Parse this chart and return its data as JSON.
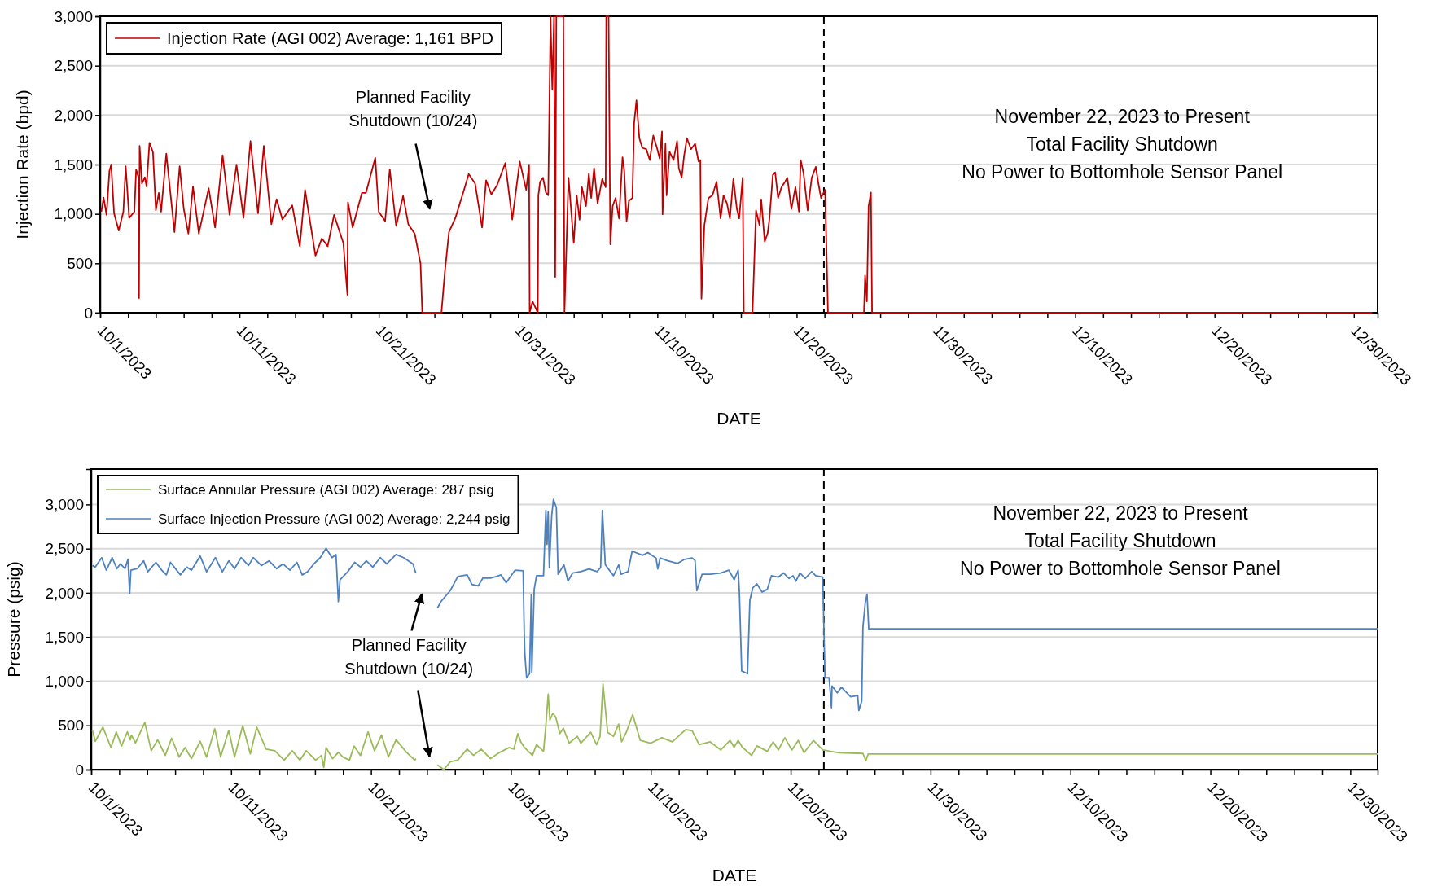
{
  "chart_data": [
    {
      "type": "line",
      "xlabel": "DATE",
      "ylabel": "Injection Rate (bpd)",
      "xlim": [
        "2023-10-01",
        "2023-12-31T17:00"
      ],
      "ylim": [
        0,
        3000
      ],
      "yticks": [
        {
          "value": 0,
          "label": "0"
        },
        {
          "value": 500,
          "label": "500"
        },
        {
          "value": 1000,
          "label": "1,000"
        },
        {
          "value": 1500,
          "label": "1,500"
        },
        {
          "value": 2000,
          "label": "2,000"
        },
        {
          "value": 2500,
          "label": "2,500"
        },
        {
          "value": 3000,
          "label": "3,000"
        }
      ],
      "xticks": [
        {
          "value": "2023-10-01",
          "label": "10/1/2023"
        },
        {
          "value": "2023-10-03",
          "label": null
        },
        {
          "value": "2023-10-05",
          "label": null
        },
        {
          "value": "2023-10-07",
          "label": null
        },
        {
          "value": "2023-10-09",
          "label": null
        },
        {
          "value": "2023-10-11",
          "label": "10/11/2023"
        },
        {
          "value": "2023-10-13",
          "label": null
        },
        {
          "value": "2023-10-15",
          "label": null
        },
        {
          "value": "2023-10-17",
          "label": null
        },
        {
          "value": "2023-10-19",
          "label": null
        },
        {
          "value": "2023-10-21",
          "label": "10/21/2023"
        },
        {
          "value": "2023-10-23",
          "label": null
        },
        {
          "value": "2023-10-25",
          "label": null
        },
        {
          "value": "2023-10-27",
          "label": null
        },
        {
          "value": "2023-10-29",
          "label": null
        },
        {
          "value": "2023-10-31",
          "label": "10/31/2023"
        },
        {
          "value": "2023-11-02",
          "label": null
        },
        {
          "value": "2023-11-04",
          "label": null
        },
        {
          "value": "2023-11-06",
          "label": null
        },
        {
          "value": "2023-11-08",
          "label": null
        },
        {
          "value": "2023-11-10",
          "label": "11/10/2023"
        },
        {
          "value": "2023-11-12",
          "label": null
        },
        {
          "value": "2023-11-14",
          "label": null
        },
        {
          "value": "2023-11-16",
          "label": null
        },
        {
          "value": "2023-11-18",
          "label": null
        },
        {
          "value": "2023-11-20",
          "label": "11/20/2023"
        },
        {
          "value": "2023-11-22",
          "label": null
        },
        {
          "value": "2023-11-24",
          "label": null
        },
        {
          "value": "2023-11-26",
          "label": null
        },
        {
          "value": "2023-11-28",
          "label": null
        },
        {
          "value": "2023-11-30",
          "label": "11/30/2023"
        },
        {
          "value": "2023-12-02",
          "label": null
        },
        {
          "value": "2023-12-04",
          "label": null
        },
        {
          "value": "2023-12-06",
          "label": null
        },
        {
          "value": "2023-12-08",
          "label": null
        },
        {
          "value": "2023-12-10",
          "label": "12/10/2023"
        },
        {
          "value": "2023-12-12",
          "label": null
        },
        {
          "value": "2023-12-14",
          "label": null
        },
        {
          "value": "2023-12-16",
          "label": null
        },
        {
          "value": "2023-12-18",
          "label": null
        },
        {
          "value": "2023-12-20",
          "label": "12/20/2023"
        },
        {
          "value": "2023-12-22",
          "label": null
        },
        {
          "value": "2023-12-24",
          "label": null
        },
        {
          "value": "2023-12-26",
          "label": null
        },
        {
          "value": "2023-12-28",
          "label": null
        },
        {
          "value": "2023-12-30",
          "label": "12/30/2023"
        }
      ],
      "grid": "y",
      "legend": "top left",
      "ref_lines": [
        {
          "axis": "x",
          "value": "2023-11-21T23:00",
          "line_style": "dashed",
          "color": "#000000"
        }
      ],
      "annotations": [
        "Planned Facility\nShutdown (10/24)",
        "November 22, 2023 to Present\nTotal Facility Shutdown\nNo Power to Bottomhole Sensor Panel"
      ],
      "series": [
        {
          "name": "Injection Rate (AGI 002) Average: 1,161 BPD",
          "color": "#c00000",
          "x": [
            "2023-10-01T02:00",
            "2023-10-01T06:00",
            "2023-10-01T11:00",
            "2023-10-01T16:00",
            "2023-10-01T19:00",
            "2023-10-02T00:00",
            "2023-10-02T08:00",
            "2023-10-02T16:00",
            "2023-10-02T20:00",
            "2023-10-03T02:00",
            "2023-10-03T11:00",
            "2023-10-03T14:00",
            "2023-10-03T18:00",
            "2023-10-03T19:00",
            "2023-10-03T20:00",
            "2023-10-04T00:00",
            "2023-10-04T05:00",
            "2023-10-04T08:00",
            "2023-10-04T13:00",
            "2023-10-04T19:00",
            "2023-10-05T00:00",
            "2023-10-05T05:00",
            "2023-10-05T09:00",
            "2023-10-05T18:00",
            "2023-10-06T08:00",
            "2023-10-06T17:00",
            "2023-10-07T00:00",
            "2023-10-07T08:00",
            "2023-10-07T16:00",
            "2023-10-08T02:00",
            "2023-10-08T19:00",
            "2023-10-09T06:00",
            "2023-10-09T19:00",
            "2023-10-10T07:00",
            "2023-10-10T19:00",
            "2023-10-11T07:00",
            "2023-10-11T19:00",
            "2023-10-12T08:00",
            "2023-10-12T18:00",
            "2023-10-13T07:00",
            "2023-10-13T16:00",
            "2023-10-14T02:00",
            "2023-10-14T19:00",
            "2023-10-15T08:00",
            "2023-10-15T17:00",
            "2023-10-16T11:00",
            "2023-10-16T22:00",
            "2023-10-17T08:00",
            "2023-10-17T19:00",
            "2023-10-18T11:00",
            "2023-10-18T18:00",
            "2023-10-18T19:00",
            "2023-10-19T03:00",
            "2023-10-19T19:00",
            "2023-10-20T02:00",
            "2023-10-20T18:00",
            "2023-10-21T00:00",
            "2023-10-21T11:00",
            "2023-10-21T19:00",
            "2023-10-22T06:00",
            "2023-10-22T18:00",
            "2023-10-23T03:00",
            "2023-10-23T14:00",
            "2023-10-24T00:00",
            "2023-10-24T03:00",
            "2023-10-25T12:00",
            "2023-10-25T18:00",
            "2023-10-26T01:00",
            "2023-10-26T12:00",
            "2023-10-26T17:00",
            "2023-10-27T03:00",
            "2023-10-27T11:00",
            "2023-10-27T22:00",
            "2023-10-28T10:00",
            "2023-10-28T17:00",
            "2023-10-29T02:00",
            "2023-10-29T12:00",
            "2023-10-30T02:00",
            "2023-10-30T14:00",
            "2023-10-31T03:00",
            "2023-10-31T14:00",
            "2023-10-31T19:00",
            "2023-10-31T20:00",
            "2023-11-01T01:00",
            "2023-11-01T10:00",
            "2023-11-01T11:00",
            "2023-11-01T14:00",
            "2023-11-01T19:00",
            "2023-11-02T00:00",
            "2023-11-02T04:00",
            "2023-11-02T08:00",
            "2023-11-02T11:00",
            "2023-11-02T14:00",
            "2023-11-02T16:00",
            "2023-11-02T18:00",
            "2023-11-03T06:00",
            "2023-11-03T08:00",
            "2023-11-03T13:00",
            "2023-11-03T15:00",
            "2023-11-03T20:00",
            "2023-11-04T00:00",
            "2023-11-04T05:00",
            "2023-11-04T10:00",
            "2023-11-04T14:00",
            "2023-11-04T21:00",
            "2023-11-05T02:00",
            "2023-11-05T06:00",
            "2023-11-05T11:00",
            "2023-11-05T17:00",
            "2023-11-06T01:00",
            "2023-11-06T07:00",
            "2023-11-06T08:00",
            "2023-11-06T12:00",
            "2023-11-06T15:00",
            "2023-11-06T19:00",
            "2023-11-07T00:00",
            "2023-11-07T06:00",
            "2023-11-07T12:00",
            "2023-11-07T15:00",
            "2023-11-07T19:00",
            "2023-11-07T23:00",
            "2023-11-08T05:00",
            "2023-11-08T08:00",
            "2023-11-08T12:00",
            "2023-11-08T17:00",
            "2023-11-08T22:00",
            "2023-11-09T05:00",
            "2023-11-09T11:00",
            "2023-11-09T17:00",
            "2023-11-10T00:00",
            "2023-11-10T04:00",
            "2023-11-10T08:00",
            "2023-11-10T09:00",
            "2023-11-10T14:00",
            "2023-11-10T16:00",
            "2023-11-10T21:00",
            "2023-11-11T04:00",
            "2023-11-11T10:00",
            "2023-11-11T13:00",
            "2023-11-11T18:00",
            "2023-11-11T22:00",
            "2023-11-12T03:00",
            "2023-11-12T10:00",
            "2023-11-12T17:00",
            "2023-11-12T23:00",
            "2023-11-13T02:00",
            "2023-11-13T04:00",
            "2023-11-13T09:00",
            "2023-11-13T16:00",
            "2023-11-13T23:00",
            "2023-11-14T06:00",
            "2023-11-14T13:00",
            "2023-11-14T18:00",
            "2023-11-15T00:00",
            "2023-11-15T05:00",
            "2023-11-15T11:00",
            "2023-11-15T17:00",
            "2023-11-15T21:00",
            "2023-11-16T03:00",
            "2023-11-16T05:00",
            "2023-11-16T20:00",
            "2023-11-17T02:00",
            "2023-11-17T08:00",
            "2023-11-17T11:00",
            "2023-11-17T17:00",
            "2023-11-17T22:00",
            "2023-11-18T01:00",
            "2023-11-18T07:00",
            "2023-11-18T11:00",
            "2023-11-18T16:00",
            "2023-11-18T22:00",
            "2023-11-19T04:00",
            "2023-11-19T08:00",
            "2023-11-19T15:00",
            "2023-11-19T22:00",
            "2023-11-20T04:00",
            "2023-11-20T07:00",
            "2023-11-20T12:00",
            "2023-11-20T19:00",
            "2023-11-21T02:00",
            "2023-11-21T09:00",
            "2023-11-21T13:00",
            "2023-11-21T18:00",
            "2023-11-22T01:00",
            "2023-11-22T06:00",
            "2023-11-24T20:00",
            "2023-11-24T22:00",
            "2023-11-25T01:00",
            "2023-11-25T04:00",
            "2023-11-25T08:00",
            "2023-11-25T10:00",
            "2023-12-31T08:00"
          ],
          "values": [
            1022,
            1165,
            990,
            1435,
            1500,
            1006,
            832,
            1022,
            1483,
            959,
            1022,
            1450,
            1371,
            149,
            1689,
            1308,
            1371,
            1276,
            1720,
            1625,
            1038,
            1213,
            1022,
            1610,
            816,
            1483,
            1054,
            800,
            1276,
            800,
            1260,
            863,
            1594,
            990,
            1498,
            959,
            1737,
            1006,
            1689,
            895,
            1149,
            943,
            1086,
            673,
            1244,
            578,
            752,
            673,
            990,
            705,
            181,
            1117,
            863,
            1213,
            1213,
            1568,
            1022,
            927,
            1451,
            879,
            1181,
            895,
            800,
            498,
            0,
            0,
            419,
            816,
            959,
            1054,
            1244,
            1403,
            1308,
            863,
            1340,
            1197,
            1292,
            1514,
            943,
            1530,
            1244,
            1498,
            0,
            115,
            0,
            1188,
            1325,
            1366,
            1216,
            1188,
            3000,
            2260,
            3000,
            362,
            3000,
            3000,
            0,
            995,
            1366,
            995,
            706,
            1188,
            940,
            1271,
            1079,
            1408,
            1161,
            1463,
            1106,
            1353,
            1271,
            3000,
            3000,
            692,
            1079,
            1161,
            954,
            1573,
            1436,
            926,
            1133,
            1161,
            1917,
            2150,
            1766,
            1669,
            1655,
            1545,
            1793,
            1655,
            1559,
            1834,
            995,
            1710,
            1188,
            1628,
            1545,
            1738,
            1463,
            1366,
            1586,
            1766,
            1655,
            1710,
            1531,
            1545,
            142,
            885,
            1161,
            1188,
            1325,
            954,
            1188,
            1106,
            954,
            1353,
            1050,
            954,
            1366,
            0,
            0,
            1036,
            885,
            1147,
            720,
            803,
            940,
            1394,
            1421,
            1161,
            1271,
            1325,
            1366,
            1050,
            1271,
            1023,
            1545,
            1408,
            1036,
            1366,
            1476,
            1325,
            1161,
            1243,
            0,
            0,
            376,
            115,
            1079,
            1216,
            0,
            0
          ]
        }
      ]
    },
    {
      "type": "line",
      "xlabel": "DATE",
      "ylabel": "Pressure (psig)",
      "xlim": [
        "2023-10-01",
        "2023-12-31T23:00"
      ],
      "ylim": [
        0,
        3400
      ],
      "yticks": [
        {
          "value": 0,
          "label": "0"
        },
        {
          "value": 500,
          "label": "500"
        },
        {
          "value": 1000,
          "label": "1,000"
        },
        {
          "value": 1500,
          "label": "1,500"
        },
        {
          "value": 2000,
          "label": "2,000"
        },
        {
          "value": 2500,
          "label": "2,500"
        },
        {
          "value": 3000,
          "label": "3,000"
        }
      ],
      "xticks": [
        {
          "value": "2023-10-01",
          "label": "10/1/2023"
        },
        {
          "value": "2023-10-03",
          "label": null
        },
        {
          "value": "2023-10-05",
          "label": null
        },
        {
          "value": "2023-10-07",
          "label": null
        },
        {
          "value": "2023-10-09",
          "label": null
        },
        {
          "value": "2023-10-11",
          "label": "10/11/2023"
        },
        {
          "value": "2023-10-13",
          "label": null
        },
        {
          "value": "2023-10-15",
          "label": null
        },
        {
          "value": "2023-10-17",
          "label": null
        },
        {
          "value": "2023-10-19",
          "label": null
        },
        {
          "value": "2023-10-21",
          "label": "10/21/2023"
        },
        {
          "value": "2023-10-23",
          "label": null
        },
        {
          "value": "2023-10-25",
          "label": null
        },
        {
          "value": "2023-10-27",
          "label": null
        },
        {
          "value": "2023-10-29",
          "label": null
        },
        {
          "value": "2023-10-31",
          "label": "10/31/2023"
        },
        {
          "value": "2023-11-02",
          "label": null
        },
        {
          "value": "2023-11-04",
          "label": null
        },
        {
          "value": "2023-11-06",
          "label": null
        },
        {
          "value": "2023-11-08",
          "label": null
        },
        {
          "value": "2023-11-10",
          "label": "11/10/2023"
        },
        {
          "value": "2023-11-12",
          "label": null
        },
        {
          "value": "2023-11-14",
          "label": null
        },
        {
          "value": "2023-11-16",
          "label": null
        },
        {
          "value": "2023-11-18",
          "label": null
        },
        {
          "value": "2023-11-20",
          "label": "11/20/2023"
        },
        {
          "value": "2023-11-22",
          "label": null
        },
        {
          "value": "2023-11-24",
          "label": null
        },
        {
          "value": "2023-11-26",
          "label": null
        },
        {
          "value": "2023-11-28",
          "label": null
        },
        {
          "value": "2023-11-30",
          "label": "11/30/2023"
        },
        {
          "value": "2023-12-02",
          "label": null
        },
        {
          "value": "2023-12-04",
          "label": null
        },
        {
          "value": "2023-12-06",
          "label": null
        },
        {
          "value": "2023-12-08",
          "label": null
        },
        {
          "value": "2023-12-10",
          "label": "12/10/2023"
        },
        {
          "value": "2023-12-12",
          "label": null
        },
        {
          "value": "2023-12-14",
          "label": null
        },
        {
          "value": "2023-12-16",
          "label": null
        },
        {
          "value": "2023-12-18",
          "label": null
        },
        {
          "value": "2023-12-20",
          "label": "12/20/2023"
        },
        {
          "value": "2023-12-22",
          "label": null
        },
        {
          "value": "2023-12-24",
          "label": null
        },
        {
          "value": "2023-12-26",
          "label": null
        },
        {
          "value": "2023-12-28",
          "label": null
        },
        {
          "value": "2023-12-30",
          "label": "12/30/2023"
        }
      ],
      "grid": "y",
      "legend": "top left",
      "ref_lines": [
        {
          "axis": "x",
          "value": "2023-11-22T09:00",
          "line_style": "dashed",
          "color": "#000000"
        }
      ],
      "annotations": [
        "Planned Facility\nShutdown (10/24)",
        "November 22, 2023 to Present\nTotal Facility Shutdown\nNo Power to Bottomhole Sensor Panel"
      ],
      "series": [
        {
          "name": "Surface Annular Pressure (AGI 002) Average: 287 psig",
          "color": "#9bbb59",
          "x": [
            "2023-10-01T02:00",
            "2023-10-01T07:00",
            "2023-10-01T20:00",
            "2023-10-02T10:00",
            "2023-10-02T19:00",
            "2023-10-03T04:00",
            "2023-10-03T14:00",
            "2023-10-03T19:00",
            "2023-10-03T21:00",
            "2023-10-04T04:00",
            "2023-10-04T20:00",
            "2023-10-05T07:00",
            "2023-10-05T18:00",
            "2023-10-06T07:00",
            "2023-10-06T18:00",
            "2023-10-07T07:00",
            "2023-10-07T17:00",
            "2023-10-08T04:00",
            "2023-10-08T19:00",
            "2023-10-09T06:00",
            "2023-10-09T20:00",
            "2023-10-10T06:00",
            "2023-10-10T20:00",
            "2023-10-11T06:00",
            "2023-10-11T20:00",
            "2023-10-12T09:00",
            "2023-10-12T20:00",
            "2023-10-13T12:00",
            "2023-10-14T03:00",
            "2023-10-14T19:00",
            "2023-10-15T09:00",
            "2023-10-15T22:00",
            "2023-10-16T09:00",
            "2023-10-17T01:00",
            "2023-10-17T11:00",
            "2023-10-17T15:00",
            "2023-10-17T19:00",
            "2023-10-18T06:00",
            "2023-10-18T16:00",
            "2023-10-19T00:00",
            "2023-10-19T11:00",
            "2023-10-19T19:00",
            "2023-10-20T06:00",
            "2023-10-20T19:00",
            "2023-10-21T06:00",
            "2023-10-21T18:00",
            "2023-10-22T06:00",
            "2023-10-22T19:00",
            "2023-10-23T13:00",
            "2023-10-24T03:00",
            "2023-10-24T05:00",
            "2023-10-24T12:00",
            "2023-10-25T18:00",
            "2023-10-26T05:00",
            "2023-10-26T16:00",
            "2023-10-27T05:00",
            "2023-10-27T21:00",
            "2023-10-28T08:00",
            "2023-10-28T21:00",
            "2023-10-29T13:00",
            "2023-10-30T05:00",
            "2023-10-30T21:00",
            "2023-10-31T05:00",
            "2023-10-31T12:00",
            "2023-10-31T17:00",
            "2023-10-31T23:00",
            "2023-11-01T13:00",
            "2023-11-01T20:00",
            "2023-11-02T08:00",
            "2023-11-02T12:00",
            "2023-11-02T16:00",
            "2023-11-02T19:00",
            "2023-11-03T00:00",
            "2023-11-03T05:00",
            "2023-11-03T12:00",
            "2023-11-03T18:00",
            "2023-11-04T04:00",
            "2023-11-04T18:00",
            "2023-11-05T00:00",
            "2023-11-05T17:00",
            "2023-11-06T03:00",
            "2023-11-06T09:00",
            "2023-11-06T14:00",
            "2023-11-06T22:00",
            "2023-11-07T08:00",
            "2023-11-07T17:00",
            "2023-11-07T22:00",
            "2023-11-08T06:00",
            "2023-11-08T17:00",
            "2023-11-09T06:00",
            "2023-11-10T00:00",
            "2023-11-10T19:00",
            "2023-11-11T13:00",
            "2023-11-12T12:00",
            "2023-11-12T23:00",
            "2023-11-13T11:00",
            "2023-11-14T06:00",
            "2023-11-15T00:00",
            "2023-11-15T16:00",
            "2023-11-15T23:00",
            "2023-11-16T06:00",
            "2023-11-16T13:00",
            "2023-11-17T05:00",
            "2023-11-17T14:00",
            "2023-11-18T08:00",
            "2023-11-18T18:00",
            "2023-11-19T03:00",
            "2023-11-19T14:00",
            "2023-11-20T02:00",
            "2023-11-20T13:00",
            "2023-11-20T23:00",
            "2023-11-21T15:00",
            "2023-11-22T07:00",
            "2023-11-23T11:00",
            "2023-11-25T04:00",
            "2023-11-25T09:00",
            "2023-11-25T13:00",
            "2023-12-31T23:00"
          ],
          "values": [
            444,
            320,
            480,
            249,
            426,
            266,
            426,
            337,
            391,
            302,
            533,
            213,
            337,
            160,
            355,
            142,
            249,
            124,
            320,
            142,
            462,
            142,
            444,
            142,
            497,
            178,
            480,
            231,
            213,
            107,
            213,
            107,
            213,
            107,
            160,
            25,
            249,
            124,
            195,
            142,
            107,
            266,
            160,
            426,
            213,
            391,
            142,
            337,
            195,
            107,
            124,
            null,
            53,
            0,
            89,
            107,
            231,
            160,
            231,
            124,
            195,
            249,
            231,
            407,
            314,
            253,
            160,
            283,
            206,
            499,
            854,
            561,
            638,
            592,
            407,
            468,
            299,
            376,
            299,
            422,
            283,
            376,
            968,
            422,
            376,
            515,
            314,
            422,
            622,
            330,
            299,
            361,
            314,
            453,
            438,
            283,
            314,
            222,
            330,
            253,
            330,
            253,
            160,
            268,
            206,
            314,
            222,
            361,
            222,
            330,
            191,
            330,
            222,
            191,
            182,
            99,
            176,
            176
          ]
        },
        {
          "name": "Surface Injection Pressure (AGI 002) Average: 2,244 psig",
          "color": "#4f81bd",
          "x": [
            "2023-10-01T02:00",
            "2023-10-01T07:00",
            "2023-10-01T18:00",
            "2023-10-02T02:00",
            "2023-10-02T12:00",
            "2023-10-02T20:00",
            "2023-10-03T02:00",
            "2023-10-03T10:00",
            "2023-10-03T15:00",
            "2023-10-03T18:00",
            "2023-10-03T20:00",
            "2023-10-04T07:00",
            "2023-10-04T18:00",
            "2023-10-05T01:00",
            "2023-10-05T15:00",
            "2023-10-06T01:00",
            "2023-10-06T09:00",
            "2023-10-06T16:00",
            "2023-10-07T09:00",
            "2023-10-07T20:00",
            "2023-10-08T04:00",
            "2023-10-08T19:00",
            "2023-10-09T06:00",
            "2023-10-09T21:00",
            "2023-10-10T09:00",
            "2023-10-10T20:00",
            "2023-10-11T06:00",
            "2023-10-11T17:00",
            "2023-10-12T06:00",
            "2023-10-12T14:00",
            "2023-10-13T04:00",
            "2023-10-13T17:00",
            "2023-10-14T06:00",
            "2023-10-14T17:00",
            "2023-10-15T05:00",
            "2023-10-15T17:00",
            "2023-10-16T02:00",
            "2023-10-16T11:00",
            "2023-10-16T22:00",
            "2023-10-17T09:00",
            "2023-10-17T19:00",
            "2023-10-18T05:00",
            "2023-10-18T12:00",
            "2023-10-18T16:00",
            "2023-10-18T19:00",
            "2023-10-19T08:00",
            "2023-10-19T20:00",
            "2023-10-20T06:00",
            "2023-10-20T16:00",
            "2023-10-21T03:00",
            "2023-10-21T16:00",
            "2023-10-22T03:00",
            "2023-10-22T19:00",
            "2023-10-23T08:00",
            "2023-10-24T00:00",
            "2023-10-24T05:00",
            "2023-10-24T12:00",
            "2023-10-25T18:00",
            "2023-10-26T00:00",
            "2023-10-26T16:00",
            "2023-10-27T05:00",
            "2023-10-27T21:00",
            "2023-10-28T05:00",
            "2023-10-28T16:00",
            "2023-10-29T00:00",
            "2023-10-29T13:00",
            "2023-10-29T23:00",
            "2023-10-30T07:00",
            "2023-10-30T16:00",
            "2023-10-31T07:00",
            "2023-10-31T21:00",
            "2023-10-31T23:00",
            "2023-11-01T00:00",
            "2023-11-01T03:00",
            "2023-11-01T08:00",
            "2023-11-01T11:00",
            "2023-11-01T12:00",
            "2023-11-01T16:00",
            "2023-11-01T20:00",
            "2023-11-02T08:00",
            "2023-11-02T12:00",
            "2023-11-02T14:00",
            "2023-11-02T16:00",
            "2023-11-02T18:00",
            "2023-11-02T22:00",
            "2023-11-03T01:00",
            "2023-11-03T06:00",
            "2023-11-03T09:00",
            "2023-11-03T19:00",
            "2023-11-04T02:00",
            "2023-11-04T10:00",
            "2023-11-05T00:00",
            "2023-11-05T14:00",
            "2023-11-06T04:00",
            "2023-11-06T10:00",
            "2023-11-06T13:00",
            "2023-11-06T18:00",
            "2023-11-07T08:00",
            "2023-11-07T17:00",
            "2023-11-07T21:00",
            "2023-11-08T09:00",
            "2023-11-08T16:00",
            "2023-11-09T10:00",
            "2023-11-09T19:00",
            "2023-11-10T09:00",
            "2023-11-10T12:00",
            "2023-11-10T16:00",
            "2023-11-11T04:00",
            "2023-11-11T22:00",
            "2023-11-12T10:00",
            "2023-11-12T23:00",
            "2023-11-13T04:00",
            "2023-11-13T07:00",
            "2023-11-13T16:00",
            "2023-11-14T06:00",
            "2023-11-15T00:00",
            "2023-11-15T14:00",
            "2023-11-15T23:00",
            "2023-11-16T06:00",
            "2023-11-16T08:00",
            "2023-11-16T12:00",
            "2023-11-16T22:00",
            "2023-11-17T02:00",
            "2023-11-17T07:00",
            "2023-11-17T14:00",
            "2023-11-17T23:00",
            "2023-11-18T08:00",
            "2023-11-18T15:00",
            "2023-11-19T03:00",
            "2023-11-19T12:00",
            "2023-11-19T21:00",
            "2023-11-20T04:00",
            "2023-11-20T09:00",
            "2023-11-20T16:00",
            "2023-11-21T01:00",
            "2023-11-21T12:00",
            "2023-11-21T19:00",
            "2023-11-22T07:00",
            "2023-11-22T11:00",
            "2023-11-22T18:00",
            "2023-11-22T22:00",
            "2023-11-22T23:00",
            "2023-11-23T08:00",
            "2023-11-23T15:00",
            "2023-11-24T07:00",
            "2023-11-24T19:00",
            "2023-11-24T21:00",
            "2023-11-25T02:00",
            "2023-11-25T04:00",
            "2023-11-25T08:00",
            "2023-11-25T11:00",
            "2023-11-25T14:00",
            "2023-12-31T23:00"
          ],
          "values": [
            2309,
            2291,
            2398,
            2256,
            2398,
            2274,
            2327,
            2274,
            2380,
            1989,
            2256,
            2274,
            2362,
            2238,
            2345,
            2256,
            2203,
            2345,
            2203,
            2291,
            2256,
            2416,
            2238,
            2398,
            2238,
            2362,
            2274,
            2398,
            2309,
            2398,
            2309,
            2362,
            2274,
            2327,
            2256,
            2345,
            2203,
            2238,
            2327,
            2398,
            2504,
            2398,
            2433,
            1900,
            2149,
            2238,
            2345,
            2291,
            2362,
            2291,
            2398,
            2327,
            2433,
            2398,
            2327,
            2220,
            null,
            1829,
            1900,
            2025,
            2185,
            2203,
            2096,
            2078,
            2167,
            2167,
            2185,
            2203,
            2114,
            2256,
            2250,
            1516,
            1300,
            1039,
            1085,
            1978,
            1100,
            2040,
            2194,
            2194,
            2934,
            2549,
            2918,
            2287,
            2872,
            3057,
            2965,
            2210,
            2317,
            2133,
            2225,
            2240,
            2271,
            2240,
            2287,
            2934,
            2317,
            2194,
            2317,
            2210,
            2240,
            2472,
            2425,
            2456,
            2394,
            2271,
            2394,
            2364,
            2333,
            2379,
            2394,
            2364,
            2025,
            2210,
            2210,
            2225,
            2256,
            2148,
            2256,
            2009,
            1116,
            1085,
            1917,
            2055,
            2102,
            2009,
            2040,
            2194,
            2179,
            2225,
            2163,
            2194,
            2133,
            2225,
            2163,
            2240,
            2194,
            2179,
            1039,
            1039,
            700,
            946,
            869,
            931,
            823,
            838,
            669,
            777,
            1609,
            1886,
            1985,
            1593,
            1593
          ]
        }
      ]
    }
  ]
}
